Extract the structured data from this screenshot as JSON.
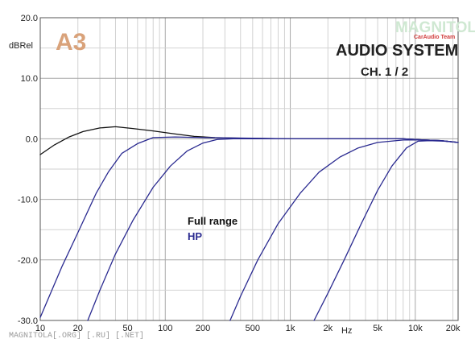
{
  "chart_data": {
    "type": "line",
    "title": "AUDIO SYSTEM",
    "subtitle": "CH. 1 / 2",
    "ylabel": "dBRel",
    "xlabel": "Hz",
    "x_scale": "log",
    "xlim": [
      10,
      22000
    ],
    "ylim": [
      -30,
      20
    ],
    "grid": true,
    "y_ticks": [
      "20.0",
      "10.0",
      "0.0",
      "-10.0",
      "-20.0",
      "-30.0"
    ],
    "x_ticks": [
      {
        "value": 10,
        "label": "10"
      },
      {
        "value": 20,
        "label": "20"
      },
      {
        "value": 50,
        "label": "50"
      },
      {
        "value": 100,
        "label": "100"
      },
      {
        "value": 200,
        "label": "200"
      },
      {
        "value": 500,
        "label": "500"
      },
      {
        "value": 1000,
        "label": "1k"
      },
      {
        "value": 2000,
        "label": "2k"
      },
      {
        "value": 5000,
        "label": "5k"
      },
      {
        "value": 10000,
        "label": "10k"
      },
      {
        "value": 20000,
        "label": "20k"
      }
    ],
    "legend": [
      {
        "label": "Full range",
        "color": "#111111"
      },
      {
        "label": "HP",
        "color": "#2a2a90"
      }
    ],
    "series": [
      {
        "name": "Full range",
        "color": "#111111",
        "points": [
          [
            10,
            -2.6
          ],
          [
            13,
            -1
          ],
          [
            17,
            0.3
          ],
          [
            22,
            1.2
          ],
          [
            30,
            1.8
          ],
          [
            40,
            2.0
          ],
          [
            55,
            1.7
          ],
          [
            80,
            1.3
          ],
          [
            120,
            0.8
          ],
          [
            170,
            0.4
          ],
          [
            250,
            0.2
          ],
          [
            400,
            0.1
          ],
          [
            1000,
            0
          ],
          [
            3000,
            0
          ],
          [
            8000,
            0
          ],
          [
            12000,
            -0.2
          ],
          [
            16000,
            -0.3
          ],
          [
            22000,
            -0.6
          ]
        ]
      },
      {
        "color": "#2a2a90",
        "points": [
          [
            10,
            -29.5
          ],
          [
            15,
            -21
          ],
          [
            20,
            -15.5
          ],
          [
            28,
            -9
          ],
          [
            35,
            -5.5
          ],
          [
            45,
            -2.4
          ],
          [
            60,
            -0.8
          ],
          [
            80,
            0.2
          ],
          [
            120,
            0.3
          ],
          [
            200,
            0.2
          ],
          [
            500,
            0.1
          ],
          [
            1000,
            0
          ],
          [
            3000,
            0
          ],
          [
            8000,
            0
          ],
          [
            12000,
            -0.2
          ],
          [
            16000,
            -0.3
          ],
          [
            22000,
            -0.6
          ]
        ]
      },
      {
        "color": "#2a2a90",
        "points": [
          [
            24,
            -30.5
          ],
          [
            30,
            -25
          ],
          [
            40,
            -19
          ],
          [
            55,
            -13.5
          ],
          [
            80,
            -8
          ],
          [
            110,
            -4.5
          ],
          [
            150,
            -2
          ],
          [
            200,
            -0.7
          ],
          [
            260,
            -0.1
          ],
          [
            350,
            0
          ],
          [
            1000,
            0
          ],
          [
            3000,
            0
          ],
          [
            8000,
            0
          ],
          [
            12000,
            -0.2
          ],
          [
            16000,
            -0.3
          ],
          [
            22000,
            -0.6
          ]
        ]
      },
      {
        "color": "#2a2a90",
        "points": [
          [
            330,
            -30
          ],
          [
            400,
            -26
          ],
          [
            550,
            -20
          ],
          [
            800,
            -14
          ],
          [
            1200,
            -9
          ],
          [
            1700,
            -5.5
          ],
          [
            2500,
            -3
          ],
          [
            3500,
            -1.5
          ],
          [
            5000,
            -0.6
          ],
          [
            8000,
            -0.2
          ],
          [
            12000,
            -0.2
          ],
          [
            16000,
            -0.3
          ],
          [
            22000,
            -0.6
          ]
        ]
      },
      {
        "color": "#2a2a90",
        "points": [
          [
            1550,
            -30
          ],
          [
            2000,
            -25.5
          ],
          [
            2700,
            -20
          ],
          [
            3700,
            -14
          ],
          [
            5000,
            -8.5
          ],
          [
            6500,
            -4.5
          ],
          [
            8500,
            -1.5
          ],
          [
            10500,
            -0.4
          ],
          [
            13000,
            -0.3
          ],
          [
            17000,
            -0.4
          ],
          [
            22000,
            -0.6
          ]
        ]
      }
    ]
  },
  "logo": {
    "text": "A3"
  },
  "watermark": {
    "brand": "MAGNITOLA",
    "team": "CarAudio Team"
  },
  "footer": {
    "text": "MAGNITOLA[.ORG] [.RU] [.NET]"
  }
}
